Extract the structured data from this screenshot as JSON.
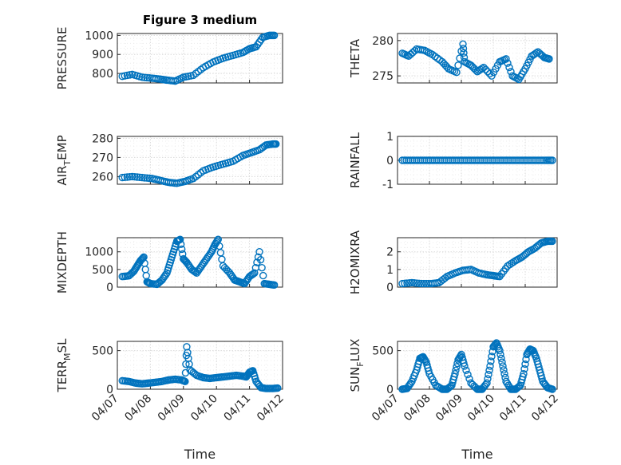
{
  "colors": {
    "marker": "#0072BD",
    "axis": "#262626",
    "background": "#ffffff"
  },
  "chart_data": [
    {
      "id": "pressure",
      "type": "scatter",
      "title": "Figure 3 medium",
      "ylabel": "PRESSURE",
      "yticks": [
        "800",
        "900",
        "1000"
      ],
      "ytick_values": [
        800,
        900,
        1000
      ],
      "ylim": [
        750,
        1010
      ],
      "xlim": [
        0,
        5
      ],
      "xticks_visible": false,
      "x": [
        0.15,
        0.45,
        0.75,
        1.05,
        1.3,
        1.5,
        1.75,
        2.0,
        2.3,
        2.6,
        2.9,
        3.2,
        3.5,
        3.8,
        4.0,
        4.2,
        4.4,
        4.6,
        4.75
      ],
      "y": [
        785,
        795,
        780,
        775,
        770,
        765,
        760,
        780,
        790,
        830,
        860,
        880,
        895,
        910,
        930,
        940,
        990,
        1000,
        1000
      ]
    },
    {
      "id": "theta",
      "type": "scatter",
      "title": "",
      "ylabel": "THETA",
      "yticks": [
        "275",
        "280"
      ],
      "ytick_values": [
        275,
        280
      ],
      "ylim": [
        274,
        281
      ],
      "xlim": [
        0,
        5
      ],
      "xticks_visible": false,
      "x": [
        0.15,
        0.35,
        0.6,
        0.85,
        1.1,
        1.4,
        1.6,
        1.85,
        2.05,
        2.1,
        2.3,
        2.5,
        2.7,
        2.95,
        3.2,
        3.4,
        3.6,
        3.8,
        4.0,
        4.2,
        4.4,
        4.6,
        4.75
      ],
      "y": [
        278.2,
        277.8,
        278.8,
        278.6,
        278.0,
        277.0,
        276.0,
        275.5,
        279.5,
        277.0,
        276.5,
        275.6,
        276.2,
        275.0,
        277.0,
        277.4,
        275.0,
        274.5,
        276.0,
        277.8,
        278.4,
        277.6,
        277.4
      ]
    },
    {
      "id": "air_temp",
      "type": "scatter",
      "title": "",
      "ylabel": "AIR_TEMP",
      "ylabel_parts": {
        "a": "AIR",
        "sub": "T",
        "b": "EMP"
      },
      "yticks": [
        "260",
        "270",
        "280"
      ],
      "ytick_values": [
        260,
        270,
        280
      ],
      "ylim": [
        256,
        281
      ],
      "xlim": [
        0,
        5
      ],
      "xticks_visible": false,
      "x": [
        0.15,
        0.45,
        0.75,
        1.05,
        1.3,
        1.55,
        1.8,
        2.05,
        2.3,
        2.6,
        2.9,
        3.2,
        3.5,
        3.8,
        4.05,
        4.3,
        4.5,
        4.7,
        4.8
      ],
      "y": [
        259.5,
        260.0,
        259.5,
        259.0,
        258.0,
        257.0,
        256.5,
        257.5,
        259.0,
        263.0,
        265.0,
        266.5,
        268.0,
        271.0,
        272.5,
        274.0,
        276.5,
        277.0,
        277.0
      ]
    },
    {
      "id": "rainfall",
      "type": "scatter",
      "title": "",
      "ylabel": "RAINFALL",
      "yticks": [
        "-1",
        "0",
        "1"
      ],
      "ytick_values": [
        -1,
        0,
        1
      ],
      "ylim": [
        -1,
        1
      ],
      "xlim": [
        0,
        5
      ],
      "xticks_visible": false,
      "x": [
        0.15,
        0.4,
        0.65,
        0.9,
        1.15,
        1.4,
        1.65,
        1.9,
        2.15,
        2.4,
        2.65,
        2.9,
        3.15,
        3.4,
        3.65,
        3.9,
        4.15,
        4.4,
        4.65,
        4.85
      ],
      "y": [
        0,
        0,
        0,
        0,
        0,
        0,
        0,
        0,
        0,
        0,
        0,
        0,
        0,
        0,
        0,
        0,
        0,
        0,
        0,
        0
      ]
    },
    {
      "id": "mixdepth",
      "type": "scatter",
      "title": "",
      "ylabel": "MIXDEPTH",
      "yticks": [
        "0",
        "500",
        "1000"
      ],
      "ytick_values": [
        0,
        500,
        1000
      ],
      "ylim": [
        0,
        1400
      ],
      "xlim": [
        0,
        5
      ],
      "xticks_visible": false,
      "x": [
        0.15,
        0.35,
        0.5,
        0.6,
        0.7,
        0.8,
        0.9,
        1.0,
        1.2,
        1.35,
        1.5,
        1.6,
        1.7,
        1.8,
        1.9,
        2.0,
        2.1,
        2.25,
        2.4,
        2.55,
        2.7,
        2.85,
        2.95,
        3.05,
        3.2,
        3.4,
        3.55,
        3.7,
        3.85,
        4.0,
        4.15,
        4.3,
        4.45,
        4.6,
        4.75
      ],
      "y": [
        300,
        320,
        450,
        600,
        750,
        850,
        150,
        100,
        80,
        200,
        400,
        700,
        1000,
        1300,
        1350,
        800,
        700,
        500,
        400,
        600,
        800,
        1000,
        1200,
        1350,
        600,
        400,
        200,
        150,
        100,
        300,
        400,
        1000,
        100,
        80,
        60
      ]
    },
    {
      "id": "h2omixra",
      "type": "scatter",
      "title": "",
      "ylabel": "H2OMIXRA",
      "yticks": [
        "0",
        "1",
        "2"
      ],
      "ytick_values": [
        0,
        1,
        2
      ],
      "ylim": [
        0,
        2.8
      ],
      "xlim": [
        0,
        5
      ],
      "xticks_visible": false,
      "x": [
        0.15,
        0.45,
        0.75,
        1.05,
        1.3,
        1.55,
        1.8,
        2.05,
        2.3,
        2.55,
        2.8,
        3.0,
        3.2,
        3.45,
        3.7,
        3.9,
        4.1,
        4.3,
        4.5,
        4.7,
        4.85
      ],
      "y": [
        0.2,
        0.25,
        0.2,
        0.2,
        0.25,
        0.6,
        0.8,
        0.95,
        1.0,
        0.8,
        0.7,
        0.65,
        0.6,
        1.2,
        1.5,
        1.7,
        2.0,
        2.2,
        2.5,
        2.6,
        2.6
      ]
    },
    {
      "id": "terr_msl",
      "type": "scatter",
      "title": "",
      "ylabel": "TERR_MSL",
      "ylabel_parts": {
        "a": "TERR",
        "sub": "M",
        "b": "SL"
      },
      "yticks": [
        "0",
        "500"
      ],
      "ytick_values": [
        0,
        500
      ],
      "ylim": [
        0,
        620
      ],
      "xlim": [
        0,
        5
      ],
      "xticks": [
        "04/07",
        "04/08",
        "04/09",
        "04/10",
        "04/11",
        "04/12"
      ],
      "xticks_visible": true,
      "xlabel": "Time",
      "x": [
        0.15,
        0.35,
        0.55,
        0.75,
        0.95,
        1.15,
        1.35,
        1.55,
        1.75,
        1.95,
        2.05,
        2.1,
        2.2,
        2.4,
        2.6,
        2.8,
        3.0,
        3.2,
        3.4,
        3.6,
        3.8,
        3.9,
        4.0,
        4.1,
        4.2,
        4.35,
        4.5,
        4.7,
        4.85
      ],
      "y": [
        110,
        100,
        80,
        70,
        80,
        90,
        100,
        120,
        130,
        120,
        100,
        550,
        250,
        180,
        150,
        140,
        150,
        160,
        170,
        180,
        170,
        160,
        220,
        240,
        100,
        20,
        10,
        10,
        15
      ]
    },
    {
      "id": "sun_flux",
      "type": "scatter",
      "title": "",
      "ylabel": "SUN_FLUX",
      "ylabel_parts": {
        "a": "SUN",
        "sub": "F",
        "b": "LUX"
      },
      "yticks": [
        "0",
        "500"
      ],
      "ytick_values": [
        0,
        500
      ],
      "ylim": [
        0,
        620
      ],
      "xlim": [
        0,
        5
      ],
      "xticks": [
        "04/07",
        "04/08",
        "04/09",
        "04/10",
        "04/11",
        "04/12"
      ],
      "xticks_visible": true,
      "xlabel": "Time",
      "x": [
        0.15,
        0.3,
        0.45,
        0.6,
        0.7,
        0.8,
        0.9,
        1.0,
        1.2,
        1.4,
        1.55,
        1.7,
        1.8,
        1.9,
        2.0,
        2.1,
        2.3,
        2.5,
        2.65,
        2.8,
        2.9,
        3.0,
        3.1,
        3.2,
        3.3,
        3.4,
        3.55,
        3.7,
        3.85,
        3.95,
        4.05,
        4.15,
        4.25,
        4.35,
        4.45,
        4.55,
        4.7,
        4.85
      ],
      "y": [
        0,
        10,
        100,
        250,
        400,
        420,
        350,
        200,
        50,
        0,
        0,
        50,
        200,
        380,
        450,
        300,
        80,
        0,
        0,
        80,
        300,
        550,
        600,
        500,
        300,
        100,
        0,
        0,
        50,
        200,
        450,
        520,
        500,
        400,
        250,
        100,
        20,
        0
      ]
    }
  ]
}
